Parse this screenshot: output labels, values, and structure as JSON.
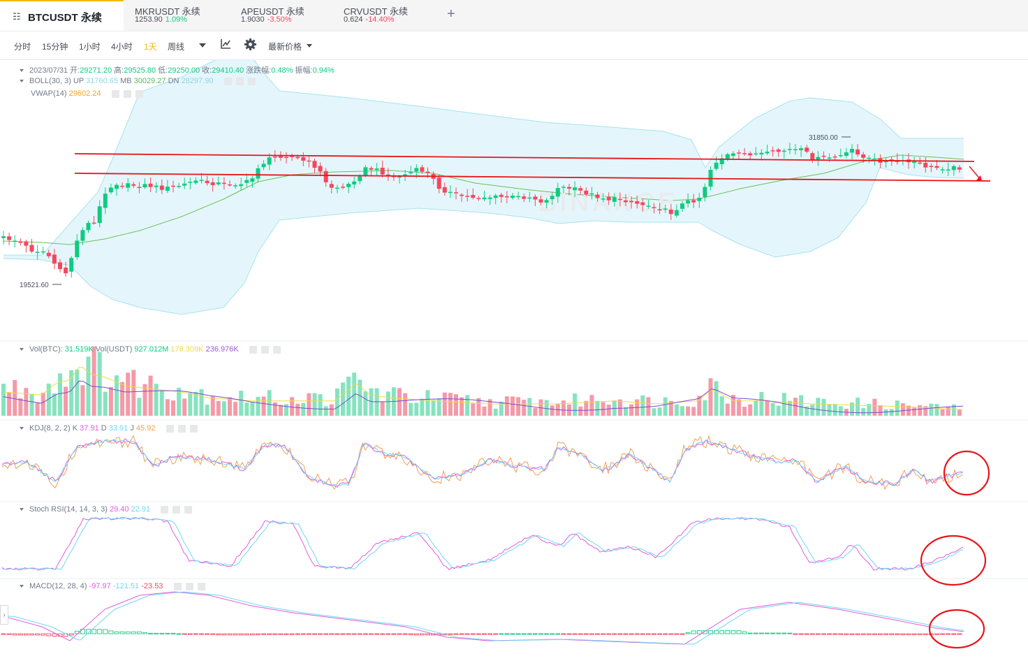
{
  "tabs": [
    {
      "symbol": "BTCUSDT 永续"
    },
    {
      "symbol": "MKRUSDT 永续",
      "price": "1253.90",
      "change": "1.09%"
    },
    {
      "symbol": "APEUSDT 永续",
      "price": "1.9030",
      "change": "-3.50%"
    },
    {
      "symbol": "CRVUSDT 永续",
      "price": "0.624",
      "change": "-14.40%"
    }
  ],
  "toolbar": {
    "intervals": [
      "分时",
      "15分钟",
      "1小时",
      "4小时",
      "1天",
      "周线"
    ],
    "price_type": "最新价格"
  },
  "ohlc": {
    "date": "2023/07/31",
    "open_label": "开:",
    "open": "29271.20",
    "high_label": "高:",
    "high": "29525.80",
    "low_label": "低:",
    "low": "29250.00",
    "close_label": "收:",
    "close": "29410.40",
    "change_label": "涨跌幅:",
    "change": "0.48%",
    "amp_label": "振幅:",
    "amp": "0.94%"
  },
  "boll": {
    "label": "BOLL(30, 3)",
    "up_label": "UP",
    "up": "31760.65",
    "mb_label": "MB",
    "mb": "30029.27",
    "dn_label": "DN",
    "dn": "28297.90"
  },
  "vwap": {
    "label": "VWAP(14)",
    "value": "29602.24"
  },
  "annotations": {
    "high": "31850.00",
    "low": "19521.60"
  },
  "watermark": "BINANCE",
  "volume": {
    "label": "Vol(BTC):",
    "btc": "31.519K",
    "usdt_label": "Vol(USDT)",
    "usdt": "927.012M",
    "ma1": "178.309K",
    "ma2": "236.976K"
  },
  "kdj": {
    "label": "KDJ(8, 2, 2)",
    "k_label": "K",
    "k": "37.91",
    "d_label": "D",
    "d": "33.91",
    "j_label": "J",
    "j": "45.92"
  },
  "stoch_rsi": {
    "label": "Stoch RSI(14, 14, 3, 3)",
    "v1": "29.40",
    "v2": "22.91"
  },
  "macd": {
    "label": "MACD(12, 28, 4)",
    "v1": "-97.97",
    "v2": "-121.51",
    "v3": "-23.53"
  },
  "colors": {
    "up": "#0ecb81",
    "down": "#f6465d",
    "accent": "#f0b90b",
    "drawn_line": "#e8141a"
  },
  "chart_data": {
    "type": "candlestick",
    "high_marker": 31850.0,
    "low_marker": 19521.6,
    "last_close": 29410.4
  }
}
